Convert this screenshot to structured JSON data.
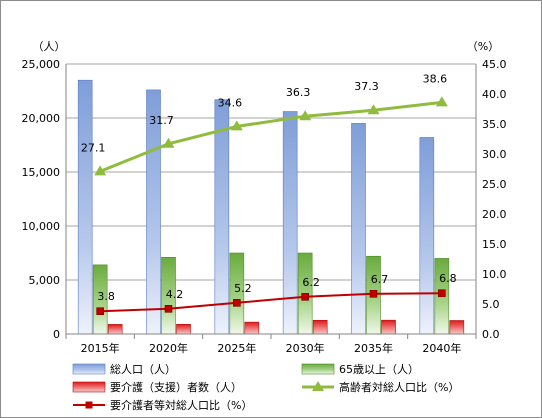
{
  "chart_data": {
    "type": "bar",
    "categories": [
      "2015年",
      "2020年",
      "2025年",
      "2030年",
      "2035年",
      "2040年"
    ],
    "left_axis": {
      "unit": "（人）",
      "min": 0,
      "max": 25000,
      "step": 5000,
      "tick_labels": [
        "0",
        "5,000",
        "10,000",
        "15,000",
        "20,000",
        "25,000"
      ]
    },
    "right_axis": {
      "unit": "（%）",
      "min": 0,
      "max": 45,
      "step": 5,
      "tick_labels": [
        "0.0",
        "5.0",
        "10.0",
        "15.0",
        "20.0",
        "25.0",
        "30.0",
        "35.0",
        "40.0",
        "45.0"
      ]
    },
    "grid": true,
    "legend_position": "bottom",
    "series": [
      {
        "name": "総人口（人）",
        "kind": "bar",
        "axis": "left",
        "color": "#8eaadc",
        "values": [
          23500,
          22600,
          21700,
          20600,
          19500,
          18200
        ]
      },
      {
        "name": "65歳以上（人）",
        "kind": "bar",
        "axis": "left",
        "color": "#77b34c",
        "values": [
          6400,
          7100,
          7500,
          7500,
          7200,
          7000
        ]
      },
      {
        "name": "要介護（支援）者数（人）",
        "kind": "bar",
        "axis": "left",
        "color": "#e02020",
        "values": [
          890,
          900,
          1100,
          1270,
          1280,
          1250
        ]
      },
      {
        "name": "高齢者対総人口比（%）",
        "kind": "line",
        "axis": "right",
        "color": "#8fbc3f",
        "values": [
          27.1,
          31.7,
          34.6,
          36.3,
          37.3,
          38.6
        ],
        "labels": [
          "27.1",
          "31.7",
          "34.6",
          "36.3",
          "37.3",
          "38.6"
        ]
      },
      {
        "name": "要介護者等対総人口比（%）",
        "kind": "line",
        "axis": "right",
        "color": "#c00000",
        "values": [
          3.8,
          4.2,
          5.2,
          6.2,
          6.7,
          6.8
        ],
        "labels": [
          "3.8",
          "4.2",
          "5.2",
          "6.2",
          "6.7",
          "6.8"
        ]
      }
    ]
  }
}
